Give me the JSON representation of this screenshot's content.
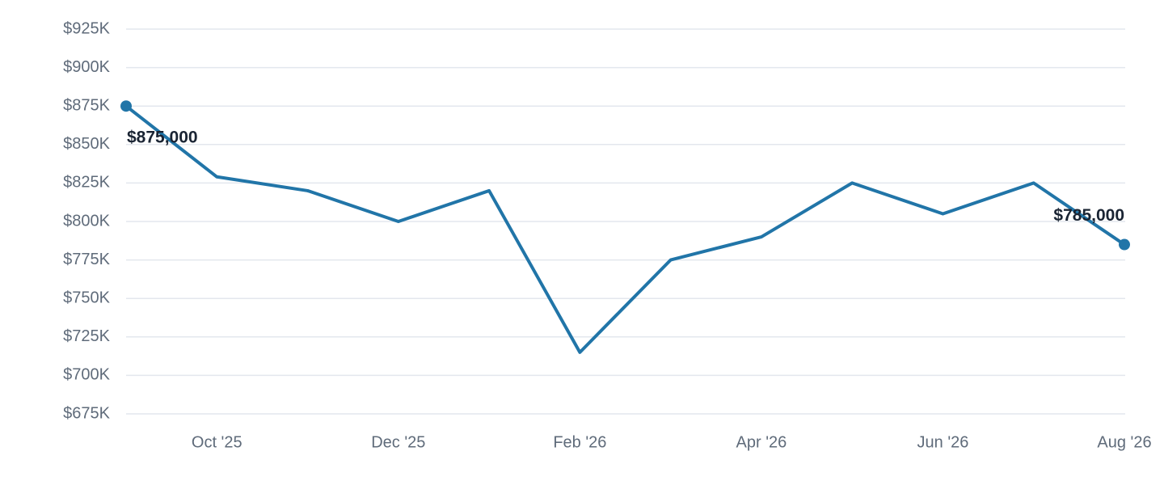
{
  "chart_data": {
    "type": "line",
    "categories": [
      null,
      "Oct '25",
      null,
      "Dec '25",
      null,
      "Feb '26",
      null,
      "Apr '26",
      null,
      "Jun '26",
      null,
      "Aug '26"
    ],
    "series": [
      {
        "color": "#2175a8",
        "values": [
          875000,
          829000,
          820000,
          800000,
          820000,
          715000,
          775000,
          790000,
          825000,
          805000,
          825000,
          785000
        ],
        "value_labels": [
          "$875,000",
          null,
          null,
          null,
          null,
          null,
          null,
          null,
          null,
          null,
          null,
          "$785,000"
        ]
      }
    ],
    "ylim": [
      675000,
      925000
    ],
    "yticks": [
      {
        "value": 675000,
        "label": "$675K"
      },
      {
        "value": 700000,
        "label": "$700K"
      },
      {
        "value": 725000,
        "label": "$725K"
      },
      {
        "value": 750000,
        "label": "$750K"
      },
      {
        "value": 775000,
        "label": "$775K"
      },
      {
        "value": 800000,
        "label": "$800K"
      },
      {
        "value": 825000,
        "label": "$825K"
      },
      {
        "value": 850000,
        "label": "$850K"
      },
      {
        "value": 875000,
        "label": "$875K"
      },
      {
        "value": 900000,
        "label": "$900K"
      },
      {
        "value": 925000,
        "label": "$925K"
      }
    ],
    "grid": true
  }
}
